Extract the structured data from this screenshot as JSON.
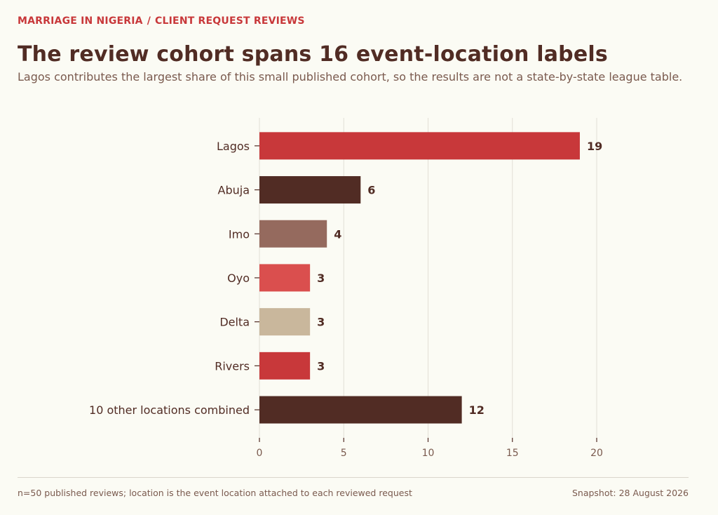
{
  "header": {
    "kicker_left": "MARRIAGE IN NIGERIA",
    "kicker_sep": "/",
    "kicker_right": "CLIENT REQUEST REVIEWS",
    "title": "The review cohort spans 16 event-location labels",
    "subtitle": "Lagos contributes the largest share of this small published cohort, so the results are not a state-by-state league table."
  },
  "footer": {
    "note": "n=50 published reviews; location is the event location attached to each reviewed request",
    "snapshot": "Snapshot: 28 August 2026"
  },
  "chart_data": {
    "type": "bar",
    "orientation": "horizontal",
    "categories": [
      "Lagos",
      "Abuja",
      "Imo",
      "Oyo",
      "Delta",
      "Rivers",
      "10 other locations combined"
    ],
    "values": [
      19,
      6,
      4,
      3,
      3,
      3,
      12
    ],
    "colors": [
      "#c8383a",
      "#512c24",
      "#956a5e",
      "#da4f4e",
      "#c9b79c",
      "#c8383a",
      "#512c24"
    ],
    "xlim": [
      0,
      20
    ],
    "xticks": [
      0,
      5,
      10,
      15,
      20
    ],
    "grid": true,
    "legend": "none",
    "data_labels": true
  }
}
